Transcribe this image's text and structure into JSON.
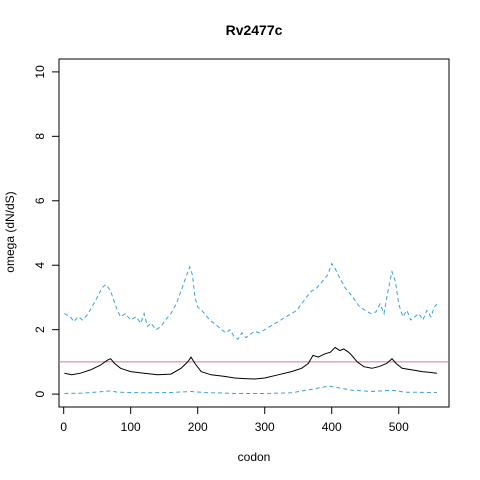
{
  "chart_data": {
    "type": "line",
    "title": "Rv2477c",
    "xlabel": "codon",
    "ylabel": "omega (dN/dS)",
    "xlim": [
      -7,
      575
    ],
    "ylim": [
      -0.4,
      10.4
    ],
    "xticks": [
      0,
      100,
      200,
      300,
      400,
      500
    ],
    "yticks": [
      0,
      2,
      4,
      6,
      8,
      10
    ],
    "grid": false,
    "legend": "none",
    "reference_line": {
      "y": 1,
      "color": "#cc79a7"
    },
    "series": [
      {
        "style": "dashed",
        "color": "#3aa0dd",
        "points": [
          [
            1,
            2.5
          ],
          [
            10,
            2.4
          ],
          [
            15,
            2.25
          ],
          [
            22,
            2.4
          ],
          [
            28,
            2.3
          ],
          [
            35,
            2.45
          ],
          [
            42,
            2.7
          ],
          [
            50,
            3.0
          ],
          [
            57,
            3.3
          ],
          [
            63,
            3.4
          ],
          [
            70,
            3.2
          ],
          [
            75,
            2.9
          ],
          [
            80,
            2.6
          ],
          [
            85,
            2.4
          ],
          [
            92,
            2.5
          ],
          [
            100,
            2.3
          ],
          [
            108,
            2.4
          ],
          [
            115,
            2.2
          ],
          [
            120,
            2.5
          ],
          [
            125,
            2.1
          ],
          [
            130,
            2.2
          ],
          [
            138,
            2.0
          ],
          [
            145,
            2.1
          ],
          [
            152,
            2.3
          ],
          [
            160,
            2.5
          ],
          [
            168,
            2.8
          ],
          [
            175,
            3.2
          ],
          [
            182,
            3.6
          ],
          [
            188,
            3.95
          ],
          [
            192,
            3.7
          ],
          [
            196,
            3.0
          ],
          [
            200,
            2.7
          ],
          [
            206,
            2.6
          ],
          [
            212,
            2.45
          ],
          [
            218,
            2.3
          ],
          [
            224,
            2.2
          ],
          [
            230,
            2.1
          ],
          [
            236,
            2.0
          ],
          [
            242,
            1.9
          ],
          [
            248,
            2.0
          ],
          [
            254,
            1.8
          ],
          [
            260,
            1.7
          ],
          [
            266,
            1.9
          ],
          [
            272,
            1.75
          ],
          [
            278,
            1.85
          ],
          [
            285,
            1.95
          ],
          [
            292,
            1.9
          ],
          [
            300,
            2.0
          ],
          [
            308,
            2.1
          ],
          [
            316,
            2.2
          ],
          [
            324,
            2.3
          ],
          [
            332,
            2.4
          ],
          [
            340,
            2.5
          ],
          [
            348,
            2.6
          ],
          [
            355,
            2.8
          ],
          [
            362,
            3.0
          ],
          [
            370,
            3.2
          ],
          [
            378,
            3.3
          ],
          [
            386,
            3.5
          ],
          [
            394,
            3.7
          ],
          [
            400,
            4.05
          ],
          [
            405,
            3.9
          ],
          [
            412,
            3.6
          ],
          [
            420,
            3.3
          ],
          [
            428,
            3.1
          ],
          [
            435,
            2.9
          ],
          [
            442,
            2.7
          ],
          [
            450,
            2.6
          ],
          [
            458,
            2.5
          ],
          [
            466,
            2.55
          ],
          [
            472,
            2.8
          ],
          [
            478,
            2.5
          ],
          [
            484,
            3.2
          ],
          [
            490,
            3.8
          ],
          [
            495,
            3.5
          ],
          [
            500,
            2.8
          ],
          [
            506,
            2.4
          ],
          [
            512,
            2.6
          ],
          [
            518,
            2.3
          ],
          [
            524,
            2.4
          ],
          [
            530,
            2.5
          ],
          [
            536,
            2.3
          ],
          [
            542,
            2.6
          ],
          [
            548,
            2.4
          ],
          [
            553,
            2.7
          ],
          [
            557,
            2.8
          ]
        ]
      },
      {
        "style": "solid",
        "color": "#000000",
        "points": [
          [
            1,
            0.65
          ],
          [
            12,
            0.6
          ],
          [
            25,
            0.65
          ],
          [
            40,
            0.75
          ],
          [
            55,
            0.9
          ],
          [
            65,
            1.05
          ],
          [
            70,
            1.1
          ],
          [
            76,
            0.95
          ],
          [
            85,
            0.8
          ],
          [
            100,
            0.7
          ],
          [
            120,
            0.65
          ],
          [
            140,
            0.6
          ],
          [
            160,
            0.62
          ],
          [
            175,
            0.8
          ],
          [
            185,
            1.0
          ],
          [
            190,
            1.15
          ],
          [
            196,
            0.95
          ],
          [
            205,
            0.7
          ],
          [
            220,
            0.6
          ],
          [
            240,
            0.55
          ],
          [
            255,
            0.5
          ],
          [
            270,
            0.48
          ],
          [
            285,
            0.47
          ],
          [
            300,
            0.5
          ],
          [
            320,
            0.6
          ],
          [
            340,
            0.7
          ],
          [
            355,
            0.8
          ],
          [
            365,
            0.95
          ],
          [
            372,
            1.2
          ],
          [
            380,
            1.15
          ],
          [
            390,
            1.25
          ],
          [
            398,
            1.3
          ],
          [
            405,
            1.45
          ],
          [
            412,
            1.35
          ],
          [
            418,
            1.4
          ],
          [
            425,
            1.3
          ],
          [
            430,
            1.2
          ],
          [
            438,
            1.0
          ],
          [
            448,
            0.85
          ],
          [
            460,
            0.8
          ],
          [
            470,
            0.85
          ],
          [
            482,
            0.95
          ],
          [
            490,
            1.1
          ],
          [
            496,
            0.95
          ],
          [
            505,
            0.8
          ],
          [
            520,
            0.75
          ],
          [
            535,
            0.7
          ],
          [
            545,
            0.68
          ],
          [
            557,
            0.65
          ]
        ]
      },
      {
        "style": "dashed",
        "color": "#3aa0dd",
        "points": [
          [
            1,
            0.02
          ],
          [
            30,
            0.03
          ],
          [
            60,
            0.08
          ],
          [
            70,
            0.1
          ],
          [
            80,
            0.06
          ],
          [
            120,
            0.04
          ],
          [
            160,
            0.05
          ],
          [
            190,
            0.08
          ],
          [
            210,
            0.05
          ],
          [
            260,
            0.02
          ],
          [
            300,
            0.02
          ],
          [
            340,
            0.04
          ],
          [
            370,
            0.15
          ],
          [
            395,
            0.25
          ],
          [
            410,
            0.2
          ],
          [
            430,
            0.12
          ],
          [
            460,
            0.08
          ],
          [
            490,
            0.12
          ],
          [
            510,
            0.06
          ],
          [
            557,
            0.05
          ]
        ]
      }
    ]
  }
}
